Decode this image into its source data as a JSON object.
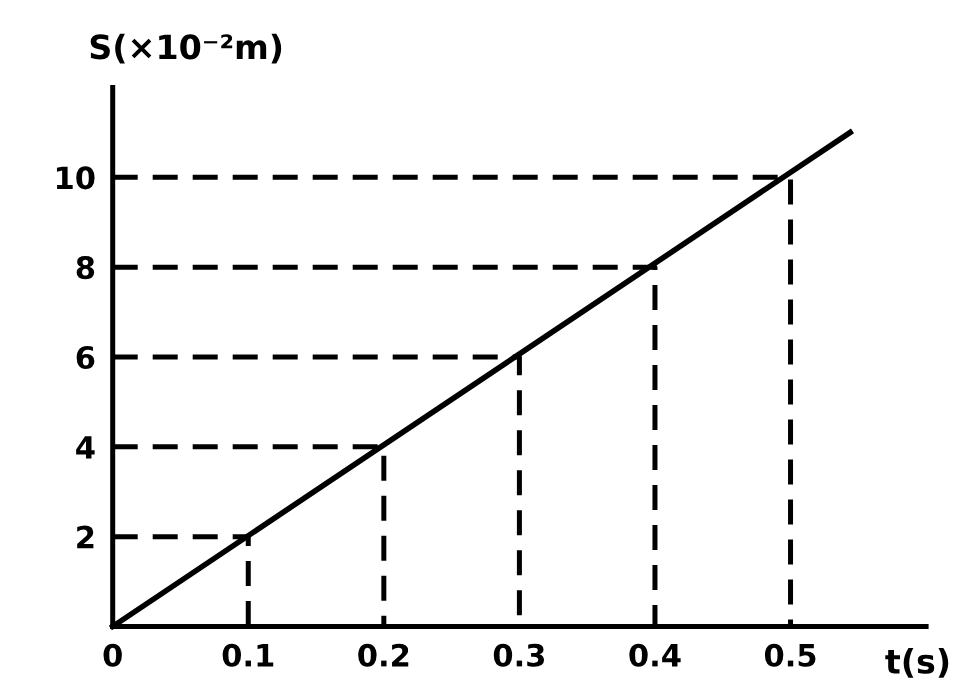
{
  "chart_data": {
    "type": "line",
    "xlabel": "t(s)",
    "ylabel": "S(×10⁻²m)",
    "xlim": [
      0,
      0.6
    ],
    "ylim": [
      0,
      12
    ],
    "xticks": [
      0,
      0.1,
      0.2,
      0.3,
      0.4,
      0.5
    ],
    "yticks": [
      2,
      4,
      6,
      8,
      10
    ],
    "grid": false,
    "legend": false,
    "marker": "none",
    "series": [
      {
        "color": "#000000",
        "x": [
          0,
          0.544
        ],
        "values": [
          0,
          11.0
        ],
        "line_style": "solid"
      },
      {
        "color": "#000000",
        "x": [
          0,
          0.1,
          0.1
        ],
        "values": [
          2,
          2,
          0
        ],
        "line_style": "dashed"
      },
      {
        "color": "#000000",
        "x": [
          0,
          0.2,
          0.2
        ],
        "values": [
          4,
          4,
          0
        ],
        "line_style": "dashed"
      },
      {
        "color": "#000000",
        "x": [
          0,
          0.3,
          0.3
        ],
        "values": [
          6,
          6,
          0
        ],
        "line_style": "dashed"
      },
      {
        "color": "#000000",
        "x": [
          0,
          0.4,
          0.4
        ],
        "values": [
          8,
          8,
          0
        ],
        "line_style": "dashed"
      },
      {
        "color": "#000000",
        "x": [
          0,
          0.5,
          0.5
        ],
        "values": [
          10,
          10,
          0
        ],
        "line_style": "dashed"
      }
    ]
  }
}
